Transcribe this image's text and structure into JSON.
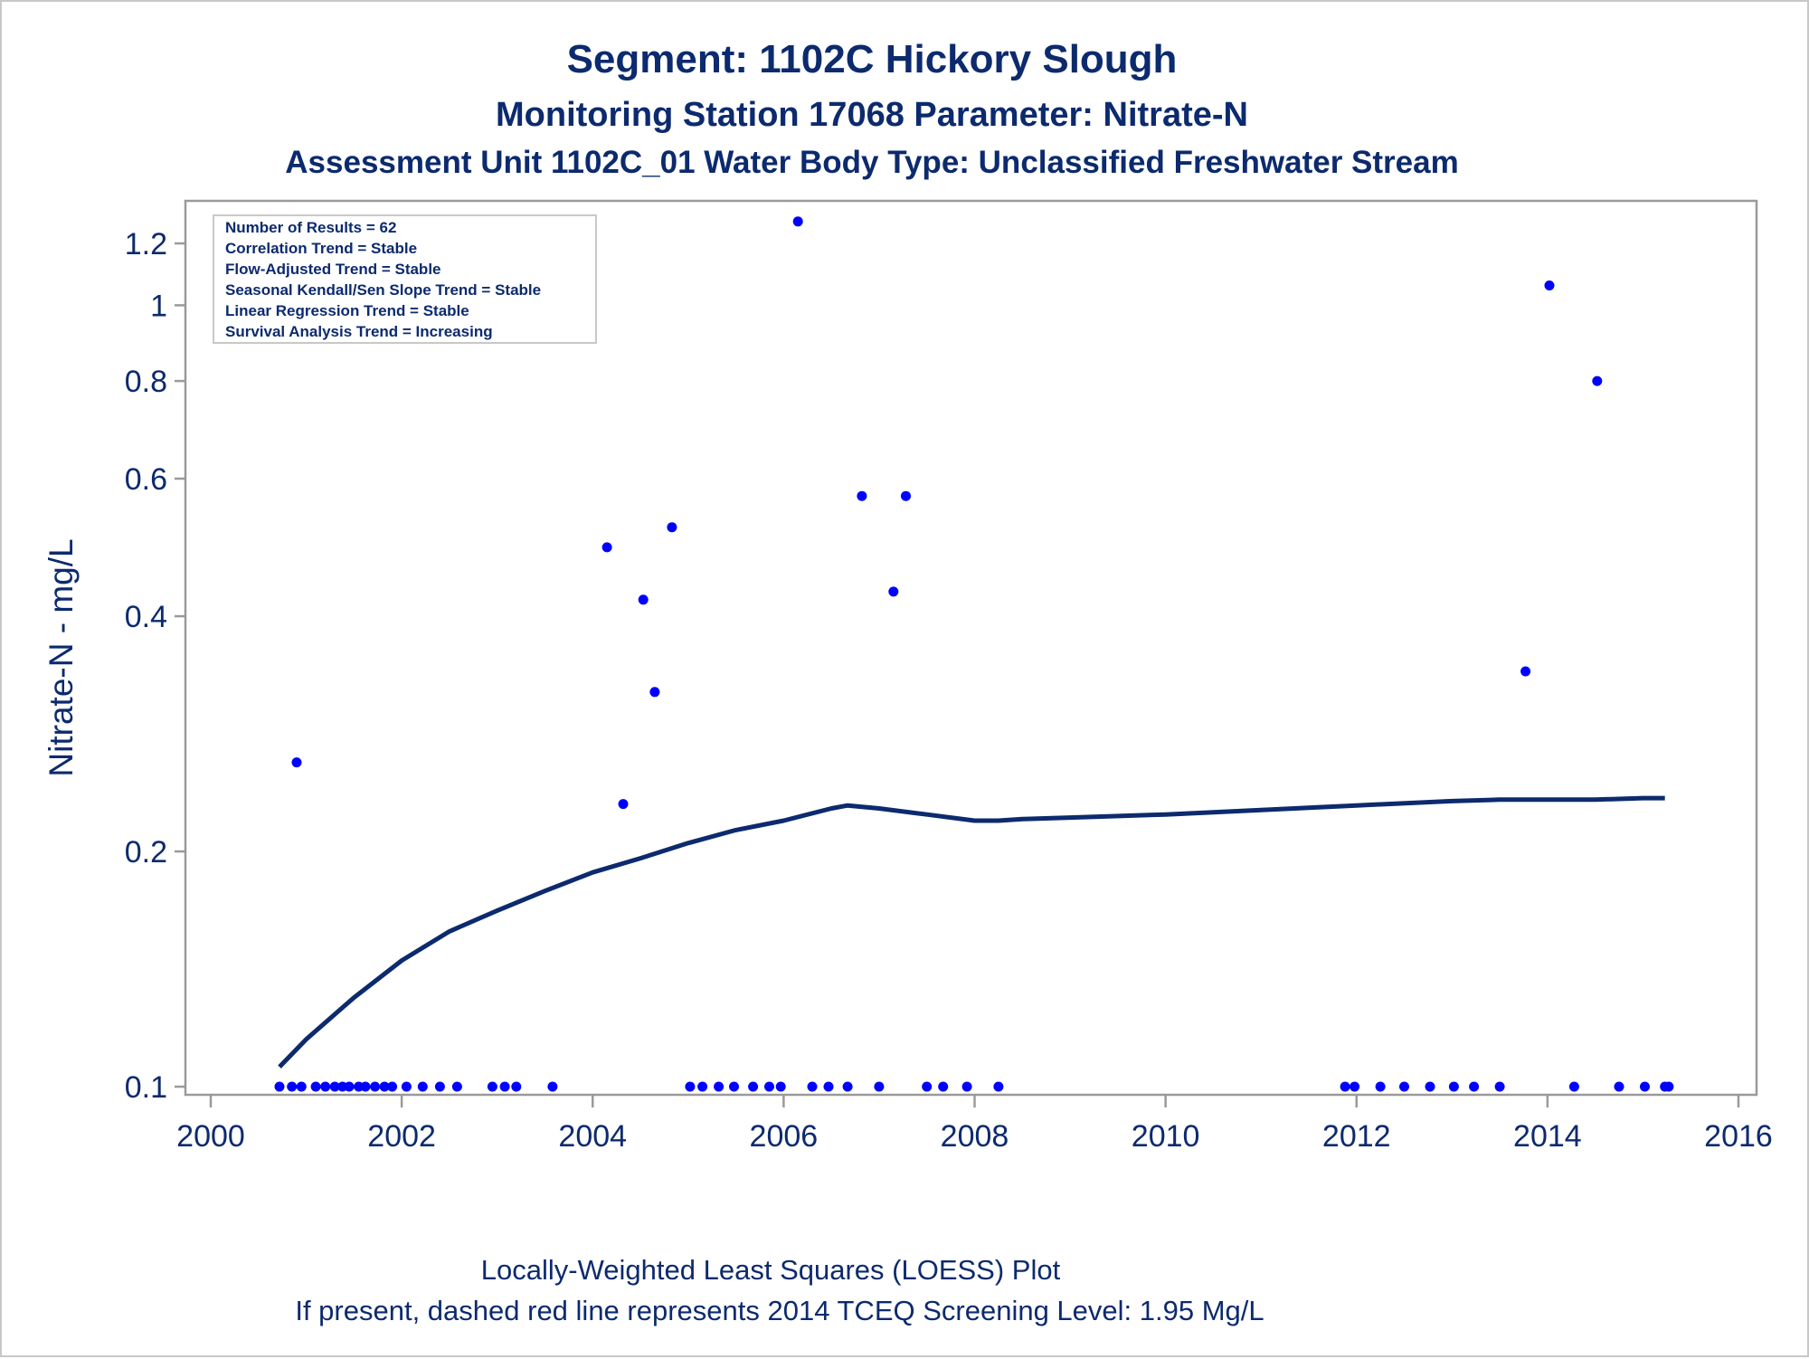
{
  "chart_data": {
    "type": "scatter",
    "title": "Segment: 1102C  Hickory Slough",
    "subtitles": [
      "Monitoring Station 17068 Parameter: Nitrate-N",
      "Assessment Unit 1102C_01   Water Body Type: Unclassified Freshwater Stream"
    ],
    "xlabel": "",
    "ylabel": "Nitrate-N - mg/L",
    "xlim": [
      2000,
      2016
    ],
    "ylim": [
      0.1,
      1.3
    ],
    "yscale": "log",
    "xticks": [
      "2000",
      "2002",
      "2004",
      "2006",
      "2008",
      "2010",
      "2012",
      "2014",
      "2016"
    ],
    "yticks": [
      "0.1",
      "0.2",
      "0.4",
      "0.6",
      "0.8",
      "1",
      "1.2"
    ],
    "grid": false,
    "stats_box": {
      "placement": "top-left",
      "lines": [
        "Number of Results = 62",
        "Correlation Trend = Stable",
        "Flow-Adjusted Trend = Stable",
        "Seasonal Kendall/Sen Slope Trend = Stable",
        "Linear Regression Trend = Stable",
        "Survival Analysis Trend = Increasing"
      ]
    },
    "footnotes": [
      "Locally-Weighted Least Squares (LOESS) Plot",
      "If present, dashed red line represents 2014 TCEQ Screening Level: 1.95 Mg/L"
    ],
    "points": {
      "x": [
        2000.72,
        2000.85,
        2000.9,
        2000.95,
        2001.1,
        2001.2,
        2001.3,
        2001.38,
        2001.45,
        2001.55,
        2001.62,
        2001.72,
        2001.82,
        2001.9,
        2002.05,
        2002.22,
        2002.4,
        2002.58,
        2002.95,
        2003.08,
        2003.2,
        2003.58,
        2004.15,
        2004.32,
        2004.53,
        2004.65,
        2004.83,
        2005.02,
        2005.15,
        2005.32,
        2005.48,
        2005.68,
        2005.85,
        2005.97,
        2006.15,
        2006.3,
        2006.47,
        2006.67,
        2006.82,
        2007.0,
        2007.15,
        2007.28,
        2007.5,
        2007.67,
        2007.92,
        2008.25,
        2011.88,
        2011.98,
        2012.25,
        2012.5,
        2012.77,
        2013.02,
        2013.23,
        2013.5,
        2013.77,
        2014.02,
        2014.28,
        2014.52,
        2014.75,
        2015.02,
        2015.23,
        2015.27
      ],
      "y": [
        0.1,
        0.1,
        0.26,
        0.1,
        0.1,
        0.1,
        0.1,
        0.1,
        0.1,
        0.1,
        0.1,
        0.1,
        0.1,
        0.1,
        0.1,
        0.1,
        0.1,
        0.1,
        0.1,
        0.1,
        0.1,
        0.1,
        0.49,
        0.23,
        0.42,
        0.32,
        0.52,
        0.1,
        0.1,
        0.1,
        0.1,
        0.1,
        0.1,
        0.1,
        1.28,
        0.1,
        0.1,
        0.1,
        0.57,
        0.1,
        0.43,
        0.57,
        0.1,
        0.1,
        0.1,
        0.1,
        0.1,
        0.1,
        0.1,
        0.1,
        0.1,
        0.1,
        0.1,
        0.1,
        0.34,
        1.06,
        0.1,
        0.8,
        0.1,
        0.1,
        0.1,
        0.1
      ],
      "color": "#0000ff"
    },
    "loess": {
      "x": [
        2000.72,
        2001.0,
        2001.5,
        2002.0,
        2002.5,
        2003.0,
        2003.5,
        2004.0,
        2004.5,
        2005.0,
        2005.5,
        2006.0,
        2006.5,
        2006.67,
        2007.0,
        2007.5,
        2008.0,
        2008.25,
        2008.5,
        2009.0,
        2010.0,
        2011.0,
        2012.0,
        2013.0,
        2013.5,
        2014.0,
        2014.5,
        2015.0,
        2015.23
      ],
      "y": [
        0.106,
        0.115,
        0.13,
        0.145,
        0.158,
        0.168,
        0.178,
        0.188,
        0.196,
        0.205,
        0.213,
        0.219,
        0.227,
        0.229,
        0.227,
        0.223,
        0.219,
        0.219,
        0.22,
        0.221,
        0.223,
        0.226,
        0.229,
        0.232,
        0.233,
        0.233,
        0.233,
        0.234,
        0.234
      ],
      "color": "#0c2a6e"
    }
  }
}
